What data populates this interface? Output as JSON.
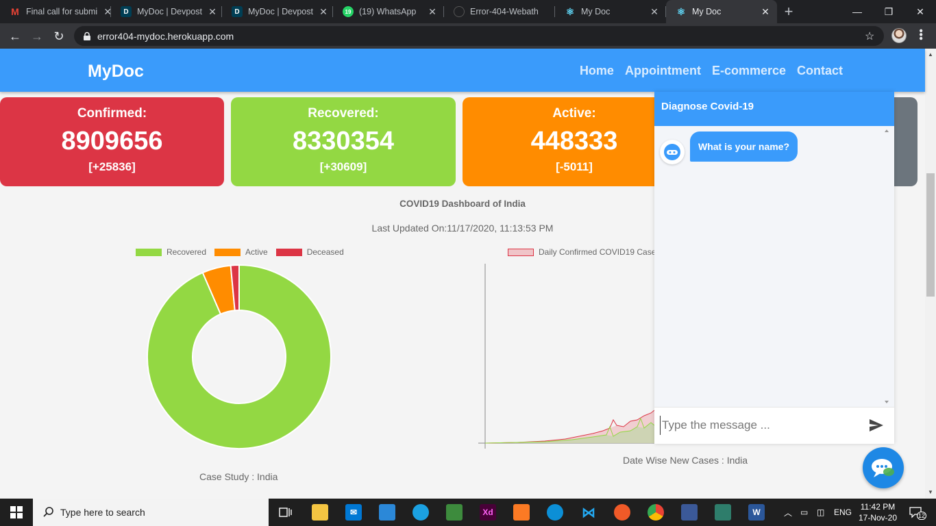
{
  "browser": {
    "tabs": [
      {
        "title": "Final call for submi",
        "icon": "gmail-icon"
      },
      {
        "title": "MyDoc | Devpost",
        "icon": "devpost-icon"
      },
      {
        "title": "MyDoc | Devpost",
        "icon": "devpost-icon"
      },
      {
        "title": "(19) WhatsApp",
        "icon": "whatsapp-icon"
      },
      {
        "title": "Error-404-Webath",
        "icon": "github-icon"
      },
      {
        "title": "My Doc",
        "icon": "react-icon"
      },
      {
        "title": "My Doc",
        "icon": "react-icon",
        "active": true
      }
    ],
    "whatsapp_count": "19",
    "url": "error404-mydoc.herokuapp.com"
  },
  "navbar": {
    "brand": "MyDoc",
    "links": [
      "Home",
      "Appointment",
      "E-commerce",
      "Contact"
    ]
  },
  "stats": [
    {
      "label": "Confirmed:",
      "value": "8909656",
      "delta": "[+25836]",
      "color": "#dc3545"
    },
    {
      "label": "Recovered:",
      "value": "8330354",
      "delta": "[+30609]",
      "color": "#93d843"
    },
    {
      "label": "Active:",
      "value": "448333",
      "delta": "[-5011]",
      "color": "#ff8c00"
    },
    {
      "label": "",
      "value": "",
      "delta": "",
      "color": "#6c757d"
    }
  ],
  "dashboard": {
    "title": "COVID19 Dashboard of India",
    "updated": "Last Updated On:11/17/2020, 11:13:53 PM",
    "pie_caption": "Case Study : India",
    "line_caption": "Date Wise New Cases : India"
  },
  "chart_data": [
    {
      "type": "pie",
      "variant": "doughnut",
      "categories": [
        "Recovered",
        "Active",
        "Deceased"
      ],
      "values": [
        8330354,
        448333,
        131098
      ],
      "colors": [
        "#93d843",
        "#ff8c00",
        "#dc3545"
      ],
      "legend": "top"
    },
    {
      "type": "line",
      "series": [
        {
          "name": "Daily Confirmed COVID19 Case",
          "color": "#dc3545",
          "fill": "#f0c4c8"
        }
      ],
      "legend": "top"
    }
  ],
  "chat": {
    "title": "Diagnose Covid-19",
    "messages": [
      {
        "from": "bot",
        "text": "What is your name?"
      }
    ],
    "input_placeholder": "Type the message ..."
  },
  "taskbar": {
    "search_placeholder": "Type here to search",
    "language": "ENG",
    "time": "11:42 PM",
    "date": "17-Nov-20",
    "notifications": "12"
  }
}
